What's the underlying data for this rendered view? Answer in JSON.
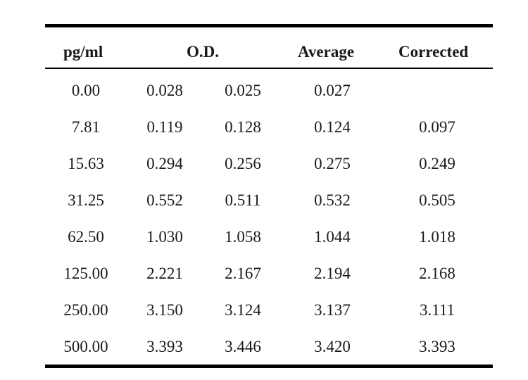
{
  "table": {
    "headers": {
      "concentration": "pg/ml",
      "od": "O.D.",
      "average": "Average",
      "corrected": "Corrected"
    },
    "rows": [
      {
        "pgml": "0.00",
        "od1": "0.028",
        "od2": "0.025",
        "average": "0.027",
        "corrected": ""
      },
      {
        "pgml": "7.81",
        "od1": "0.119",
        "od2": "0.128",
        "average": "0.124",
        "corrected": "0.097"
      },
      {
        "pgml": "15.63",
        "od1": "0.294",
        "od2": "0.256",
        "average": "0.275",
        "corrected": "0.249"
      },
      {
        "pgml": "31.25",
        "od1": "0.552",
        "od2": "0.511",
        "average": "0.532",
        "corrected": "0.505"
      },
      {
        "pgml": "62.50",
        "od1": "1.030",
        "od2": "1.058",
        "average": "1.044",
        "corrected": "1.018"
      },
      {
        "pgml": "125.00",
        "od1": "2.221",
        "od2": "2.167",
        "average": "2.194",
        "corrected": "2.168"
      },
      {
        "pgml": "250.00",
        "od1": "3.150",
        "od2": "3.124",
        "average": "3.137",
        "corrected": "3.111"
      },
      {
        "pgml": "500.00",
        "od1": "3.393",
        "od2": "3.446",
        "average": "3.420",
        "corrected": "3.393"
      }
    ]
  }
}
